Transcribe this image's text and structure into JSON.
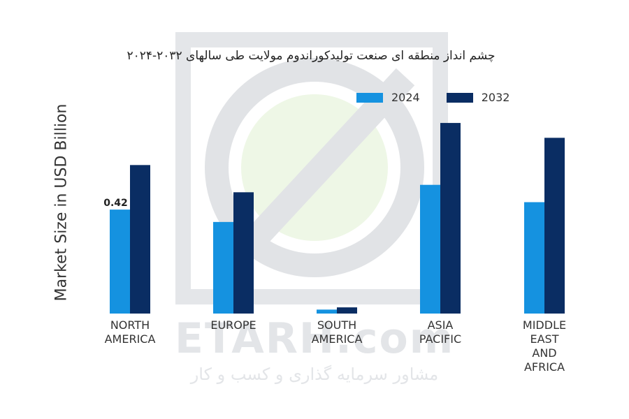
{
  "title": "چشم انداز منطقه ای صنعت تولیدکوراندوم مولایت طی سالهای ۲۰۳۲-۲۰۲۴",
  "watermark": {
    "brand": "ETARH.com",
    "tagline": "مشاور سرمایه گذاری و کسب و کار"
  },
  "colors": {
    "2024": "#1592e0",
    "2032": "#0a2d63"
  },
  "chart_data": {
    "type": "bar",
    "title": "چشم انداز منطقه ای صنعت تولیدکوراندوم مولایت طی سالهای ۲۰۳۲-۲۰۲۴",
    "xlabel": "",
    "ylabel": "Market Size in USD Billion",
    "categories": [
      [
        "NORTH",
        "AMERICA"
      ],
      [
        "EUROPE"
      ],
      [
        "SOUTH",
        "AMERICA"
      ],
      [
        "ASIA",
        "PACIFIC"
      ],
      [
        "MIDDLE",
        "EAST",
        "AND",
        "AFRICA"
      ]
    ],
    "series": [
      {
        "name": "2024",
        "values": [
          0.42,
          0.37,
          0.016,
          0.52,
          0.45
        ]
      },
      {
        "name": "2032",
        "values": [
          0.6,
          0.49,
          0.025,
          0.77,
          0.71
        ]
      }
    ],
    "data_labels": [
      {
        "series": 0,
        "index": 0,
        "text": "0.42"
      }
    ],
    "ylim": [
      0,
      0.9
    ],
    "grid": false,
    "legend": "top-right"
  }
}
